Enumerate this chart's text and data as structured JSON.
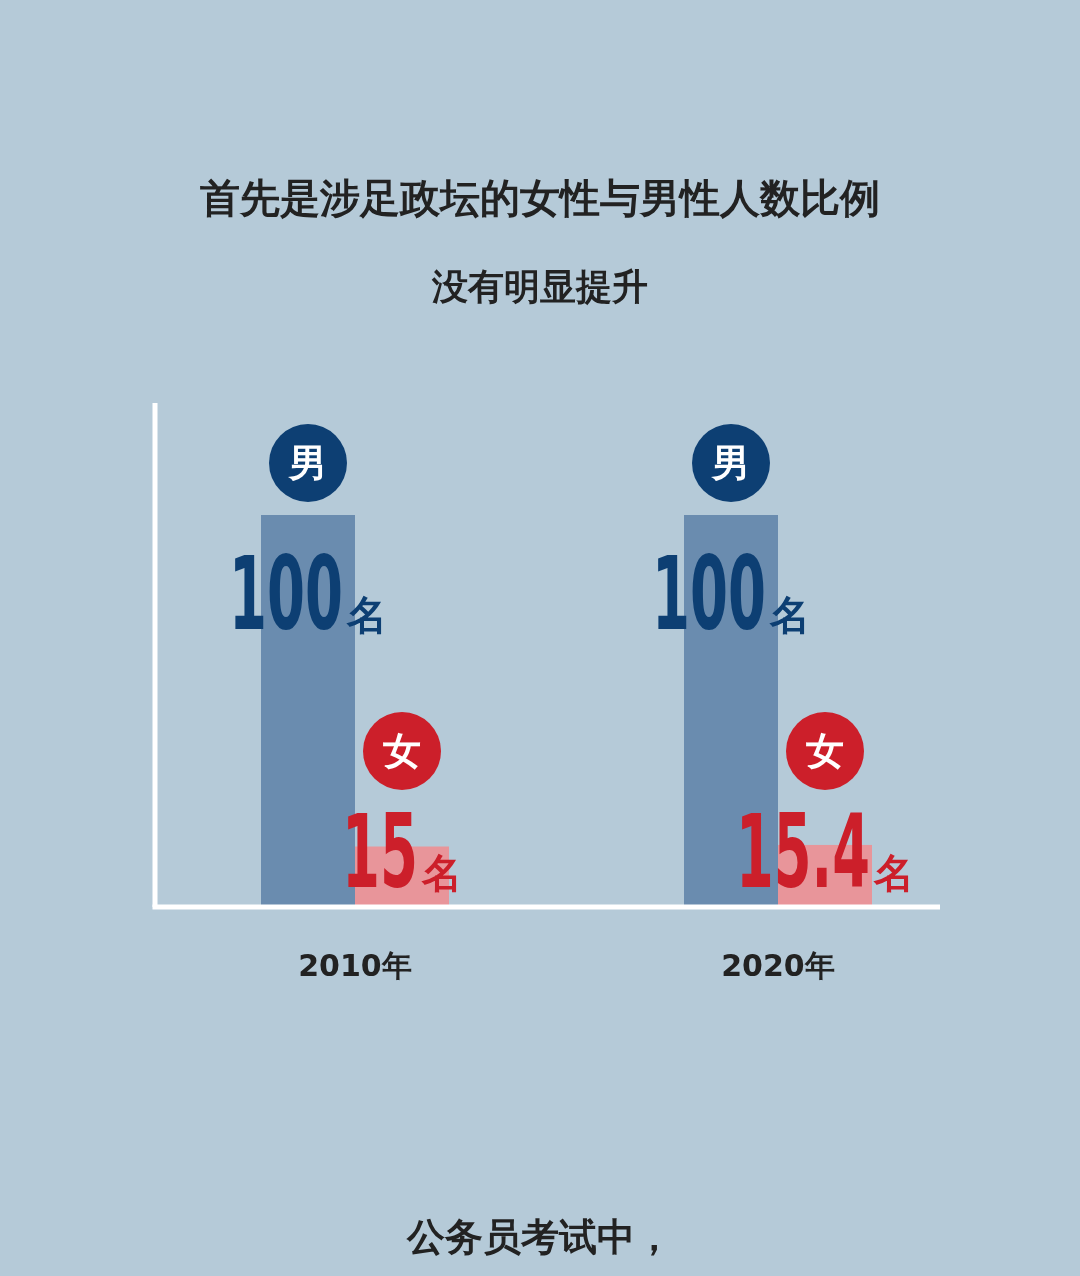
{
  "chart_data": {
    "type": "bar",
    "title": "首先是涉足政坛的女性与男性人数比例",
    "subtitle": "没有明显提升",
    "annotations": [
      "公务员考试中，"
    ],
    "categories": [
      "2010年",
      "2020年"
    ],
    "series": [
      {
        "name": "男",
        "color": "#6a8caf",
        "values": [
          100,
          100
        ],
        "value_labels": [
          "100名",
          "100名"
        ]
      },
      {
        "name": "女",
        "color": "#e8959a",
        "values": [
          15,
          15.4
        ],
        "value_labels": [
          "15名",
          "15.4名"
        ]
      }
    ]
  }
}
